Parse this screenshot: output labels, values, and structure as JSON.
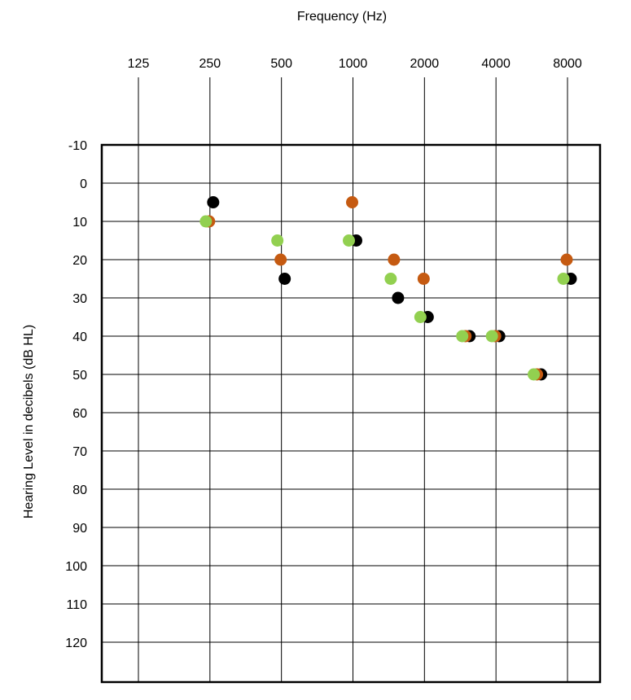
{
  "chart_data": {
    "type": "scatter",
    "title": "",
    "xlabel": "Frequency (Hz)",
    "ylabel": "Hearing Level in decibels (dB HL)",
    "x_ticks": [
      "125",
      "250",
      "500",
      "1000",
      "2000",
      "4000",
      "8000"
    ],
    "y_ticks": [
      "-10",
      "0",
      "10",
      "20",
      "30",
      "40",
      "50",
      "60",
      "70",
      "80",
      "90",
      "100",
      "110",
      "120"
    ],
    "ylim": [
      -10,
      130
    ],
    "y_inverted": true,
    "x_scale": "log2",
    "xlim": [
      125,
      8000
    ],
    "grid": true,
    "colors": {
      "black": "#000000",
      "orange": "#c55a11",
      "green": "#92d050"
    },
    "series": [
      {
        "color": "black",
        "points": [
          [
            250,
            5
          ],
          [
            500,
            25
          ],
          [
            1000,
            15
          ],
          [
            1500,
            30
          ],
          [
            2000,
            35
          ],
          [
            3000,
            40
          ],
          [
            4000,
            40
          ],
          [
            6000,
            50
          ],
          [
            8000,
            25
          ]
        ]
      },
      {
        "color": "orange",
        "points": [
          [
            250,
            10
          ],
          [
            500,
            20
          ],
          [
            1000,
            5
          ],
          [
            1500,
            20
          ],
          [
            2000,
            25
          ],
          [
            3000,
            40
          ],
          [
            4000,
            40
          ],
          [
            6000,
            50
          ],
          [
            8000,
            20
          ]
        ]
      },
      {
        "color": "green",
        "points": [
          [
            250,
            10
          ],
          [
            500,
            15
          ],
          [
            1000,
            15
          ],
          [
            1500,
            25
          ],
          [
            2000,
            35
          ],
          [
            3000,
            40
          ],
          [
            4000,
            40
          ],
          [
            6000,
            50
          ],
          [
            8000,
            25
          ]
        ]
      }
    ]
  }
}
